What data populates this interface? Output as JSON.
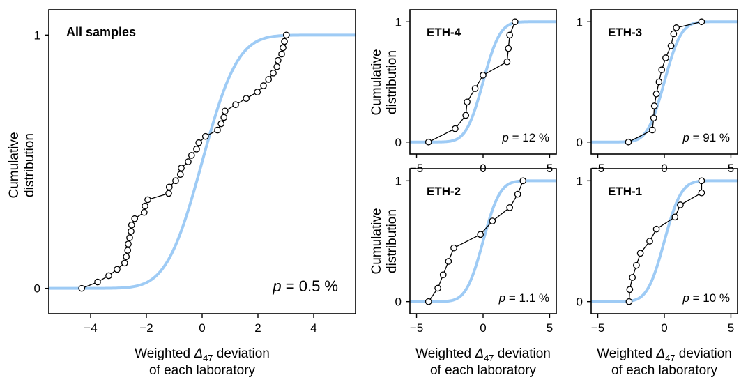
{
  "chart_data": [
    {
      "type": "line",
      "panel": "all",
      "title": "All samples",
      "p_value": "p = 0.5 %",
      "xlabel": [
        "Weighted Δ47 deviation",
        "of each laboratory"
      ],
      "ylabel": [
        "Cumulative",
        "distribution"
      ],
      "xlim": [
        -5.5,
        5.5
      ],
      "ylim": [
        -0.1,
        1.1
      ],
      "xticks": [
        -4,
        -2,
        0,
        2,
        4
      ],
      "xtick_labels": [
        "−4",
        "−2",
        "0",
        "2",
        "4"
      ],
      "yticks": [
        0,
        1
      ],
      "ytick_labels": [
        "0",
        "1"
      ],
      "model_color": "#9ecbf5",
      "empirical_color": "#000000",
      "series": [
        {
          "kind": "empirical_cdf",
          "x": [
            -4.32,
            -3.75,
            -3.35,
            -3.05,
            -2.78,
            -2.72,
            -2.67,
            -2.65,
            -2.6,
            -2.55,
            -2.53,
            -2.42,
            -2.08,
            -2.05,
            -1.95,
            -1.2,
            -1.18,
            -0.95,
            -0.78,
            -0.75,
            -0.5,
            -0.38,
            -0.2,
            -0.12,
            0.12,
            0.55,
            0.68,
            0.78,
            0.82,
            1.2,
            1.58,
            1.98,
            2.2,
            2.38,
            2.55,
            2.68,
            2.72,
            2.85,
            2.9,
            2.95,
            3.02
          ],
          "y": [
            0,
            0.025,
            0.05,
            0.075,
            0.1,
            0.125,
            0.15,
            0.175,
            0.2,
            0.225,
            0.25,
            0.275,
            0.3,
            0.325,
            0.35,
            0.375,
            0.4,
            0.425,
            0.45,
            0.475,
            0.5,
            0.525,
            0.55,
            0.575,
            0.6,
            0.625,
            0.65,
            0.675,
            0.7,
            0.725,
            0.75,
            0.775,
            0.8,
            0.825,
            0.85,
            0.875,
            0.9,
            0.925,
            0.95,
            0.975,
            1
          ]
        },
        {
          "kind": "model_cdf",
          "sigma": 1.0
        }
      ]
    },
    {
      "type": "line",
      "panel": "eth4",
      "title": "ETH-4",
      "p_value": "p = 12 %",
      "ylabel": [
        "Cumulative",
        "distribution"
      ],
      "xlim": [
        -5.5,
        5.5
      ],
      "ylim": [
        -0.1,
        1.1
      ],
      "xticks": [
        -5,
        0,
        5
      ],
      "xtick_labels": [
        "−5",
        "0",
        "5"
      ],
      "yticks": [
        0,
        1
      ],
      "ytick_labels": [
        "0",
        "1"
      ],
      "series": [
        {
          "kind": "empirical_cdf",
          "x": [
            -4.1,
            -2.1,
            -1.3,
            -1.2,
            -0.6,
            0.0,
            1.8,
            1.9,
            2.0,
            2.4
          ],
          "y": [
            0,
            0.111,
            0.222,
            0.333,
            0.444,
            0.556,
            0.667,
            0.778,
            0.889,
            1
          ]
        },
        {
          "kind": "model_cdf",
          "sigma": 1.0
        }
      ]
    },
    {
      "type": "line",
      "panel": "eth3",
      "title": "ETH-3",
      "p_value": "p = 91 %",
      "xlim": [
        -5.5,
        5.5
      ],
      "ylim": [
        -0.1,
        1.1
      ],
      "xticks": [
        -5,
        0,
        5
      ],
      "xtick_labels": [
        "−5",
        "0",
        "5"
      ],
      "yticks": [
        0,
        1
      ],
      "ytick_labels": [
        "0",
        "1"
      ],
      "series": [
        {
          "kind": "empirical_cdf",
          "x": [
            -2.7,
            -0.9,
            -0.8,
            -0.75,
            -0.6,
            -0.4,
            -0.2,
            0.1,
            0.5,
            0.7,
            0.9,
            2.8
          ],
          "y": [
            0,
            0.1,
            0.2,
            0.3,
            0.4,
            0.5,
            0.6,
            0.7,
            0.8,
            0.9,
            0.95,
            1
          ]
        },
        {
          "kind": "model_cdf",
          "sigma": 1.0
        }
      ]
    },
    {
      "type": "line",
      "panel": "eth2",
      "title": "ETH-2",
      "p_value": "p = 1.1 %",
      "ylabel": [
        "Cumulative",
        "distribution"
      ],
      "xlabel": [
        "Weighted Δ47 deviation",
        "of each laboratory"
      ],
      "xlim": [
        -5.5,
        5.5
      ],
      "ylim": [
        -0.1,
        1.1
      ],
      "xticks": [
        -5,
        0,
        5
      ],
      "xtick_labels": [
        "−5",
        "0",
        "5"
      ],
      "yticks": [
        0,
        1
      ],
      "ytick_labels": [
        "0",
        "1"
      ],
      "series": [
        {
          "kind": "empirical_cdf",
          "x": [
            -4.1,
            -3.4,
            -3.0,
            -2.6,
            -2.2,
            -0.2,
            0.7,
            2.0,
            2.6,
            3.0
          ],
          "y": [
            0,
            0.111,
            0.222,
            0.333,
            0.444,
            0.556,
            0.667,
            0.778,
            0.889,
            1
          ]
        },
        {
          "kind": "model_cdf",
          "sigma": 1.0
        }
      ]
    },
    {
      "type": "line",
      "panel": "eth1",
      "title": "ETH-1",
      "p_value": "p = 10 %",
      "xlabel": [
        "Weighted Δ47 deviation",
        "of each laboratory"
      ],
      "xlim": [
        -5.5,
        5.5
      ],
      "ylim": [
        -0.1,
        1.1
      ],
      "xticks": [
        -5,
        0,
        5
      ],
      "xtick_labels": [
        "−5",
        "0",
        "5"
      ],
      "yticks": [
        0,
        1
      ],
      "ytick_labels": [
        "0",
        "1"
      ],
      "series": [
        {
          "kind": "empirical_cdf",
          "x": [
            -2.65,
            -2.6,
            -2.4,
            -2.1,
            -1.8,
            -1.1,
            -0.6,
            0.8,
            1.2,
            2.8,
            2.8
          ],
          "y": [
            0,
            0.1,
            0.2,
            0.3,
            0.4,
            0.5,
            0.6,
            0.7,
            0.8,
            0.9,
            1
          ]
        },
        {
          "kind": "model_cdf",
          "sigma": 1.0
        }
      ]
    }
  ]
}
